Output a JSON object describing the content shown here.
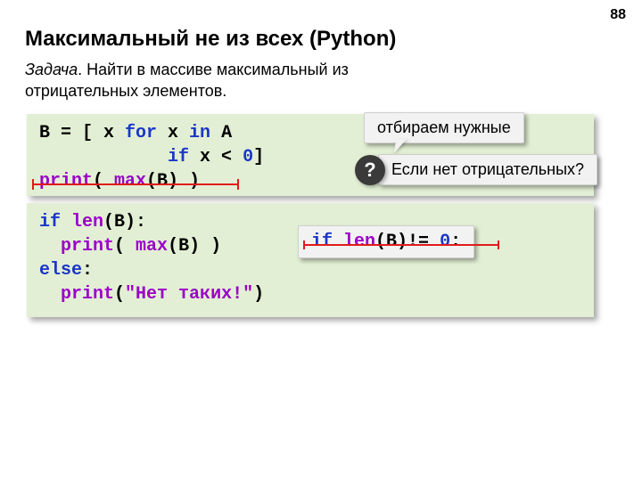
{
  "page_number": "88",
  "title": "Максимальный не из всех (Python)",
  "problem": {
    "label": "Задача",
    "text": ". Найти в массиве максимальный из отрицательных элементов."
  },
  "code1": {
    "l1": {
      "a": "B = [ x ",
      "for": "for",
      "b": " x ",
      "in": "in",
      "c": " A"
    },
    "l2": {
      "pad": "            ",
      "if": "if",
      "a": " x < ",
      "zero": "0",
      "b": "]"
    },
    "l3": {
      "print": "print",
      "a": "( ",
      "max": "max",
      "b": "(B) )"
    }
  },
  "code2": {
    "l1": {
      "if": "if",
      "a": " ",
      "len": "len",
      "b": "(B):"
    },
    "l2": {
      "pad": "  ",
      "print": "print",
      "a": "( ",
      "max": "max",
      "b": "(B) )"
    },
    "l3": {
      "else": "else",
      "a": ":"
    },
    "l4": {
      "pad": "  ",
      "print": "print",
      "a": "(",
      "str": "\"Нет таких!\"",
      "b": ")"
    }
  },
  "callouts": {
    "select": "отбираем нужные",
    "no_neg": "Если нет отрицательных?",
    "q": "?"
  },
  "inline": {
    "if": "if",
    "a": " ",
    "len": "len",
    "b": "(B)!= ",
    "zero": "0",
    "c": ":"
  },
  "colors": {
    "code_bg": "#e2efd4",
    "keyword": "#1a37c8",
    "builtin": "#9b00c7",
    "strike": "#e01b1b",
    "callout_bg": "#f2f2f2",
    "badge_bg": "#3a3a3a"
  }
}
